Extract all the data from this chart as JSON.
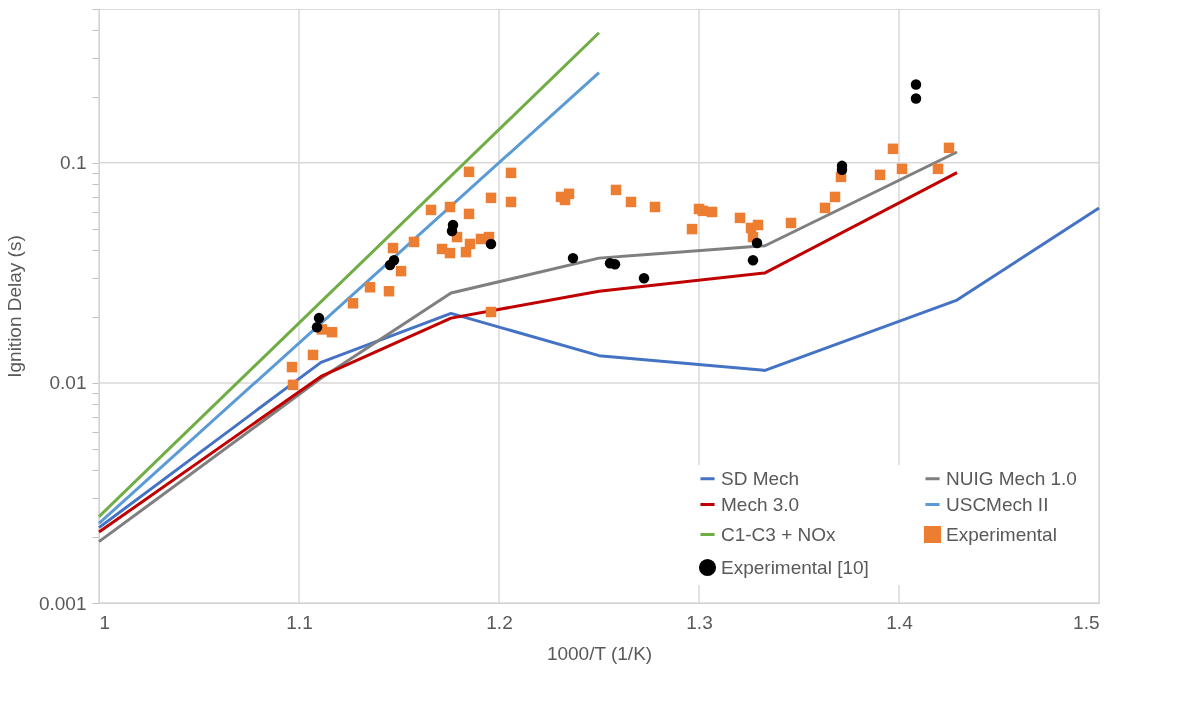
{
  "chart_data": {
    "type": "line",
    "xlabel": "1000/T (1/K)",
    "ylabel": "Ignition Delay (s)",
    "log": "y",
    "grid": true,
    "legend": "bottom right",
    "xlim": [
      1,
      1.5
    ],
    "xticks": [
      1,
      1.1,
      1.2,
      1.3,
      1.4,
      1.5
    ],
    "ylim": [
      0.001,
      0.5
    ],
    "yticks": [
      0.001,
      {
        "value": 0.002,
        "label": null
      },
      {
        "value": 0.003,
        "label": null
      },
      {
        "value": 0.004,
        "label": null
      },
      {
        "value": 0.005,
        "label": null
      },
      {
        "value": 0.006,
        "label": null
      },
      {
        "value": 0.007,
        "label": null
      },
      {
        "value": 0.008,
        "label": null
      },
      {
        "value": 0.009,
        "label": null
      },
      0.01,
      {
        "value": 0.02,
        "label": null
      },
      {
        "value": 0.03,
        "label": null
      },
      {
        "value": 0.04,
        "label": null
      },
      {
        "value": 0.05,
        "label": null
      },
      {
        "value": 0.06,
        "label": null
      },
      {
        "value": 0.07,
        "label": null
      },
      {
        "value": 0.08,
        "label": null
      },
      {
        "value": 0.09,
        "label": null
      },
      0.1,
      {
        "value": 0.2,
        "label": null
      },
      {
        "value": 0.3,
        "label": null
      },
      {
        "value": 0.4,
        "label": null
      },
      {
        "value": 0.5,
        "label": null
      }
    ],
    "series": [
      {
        "name": "SD Mech",
        "color": "#4472c4",
        "x": [
          1,
          1.111,
          1.176,
          1.25,
          1.333,
          1.429,
          1.5
        ],
        "values": [
          0.0022,
          0.0124,
          0.0207,
          0.0133,
          0.0114,
          0.0238,
          0.0624
        ]
      },
      {
        "name": "NUIG Mech 1.0",
        "color": "#7f7f7f",
        "x": [
          1,
          1.111,
          1.176,
          1.25,
          1.333,
          1.429
        ],
        "values": [
          0.0019,
          0.0105,
          0.0256,
          0.0369,
          0.042,
          0.112
        ]
      },
      {
        "name": "Mech 3.0",
        "color": "#c00000",
        "x": [
          1,
          1.111,
          1.176,
          1.25,
          1.333,
          1.429
        ],
        "values": [
          0.0021,
          0.0107,
          0.0197,
          0.0261,
          0.0316,
          0.0903
        ]
      },
      {
        "name": "USCMech II",
        "color": "#5b9bd5",
        "x": [
          1,
          1.25
        ],
        "values": [
          0.0023,
          0.257
        ]
      },
      {
        "name": "C1-C3 + NOx",
        "color": "#70ad47",
        "x": [
          1,
          1.25
        ],
        "values": [
          0.00247,
          0.39
        ]
      },
      {
        "name": "Experimental",
        "type": "scatter",
        "marker": "square",
        "color": "#ed7d31",
        "x": [
          1.0965,
          1.097,
          1.107,
          1.1115,
          1.1165,
          1.127,
          1.1355,
          1.145,
          1.147,
          1.151,
          1.1575,
          1.166,
          1.1715,
          1.1755,
          1.1755,
          1.179,
          1.1835,
          1.1855,
          1.185,
          1.185,
          1.191,
          1.195,
          1.196,
          1.196,
          1.206,
          1.206,
          1.231,
          1.233,
          1.235,
          1.2585,
          1.266,
          1.278,
          1.2965,
          1.3,
          1.302,
          1.3065,
          1.3205,
          1.326,
          1.3295,
          1.327,
          1.346,
          1.363,
          1.368,
          1.371,
          1.3905,
          1.397,
          1.4015,
          1.4195,
          1.425
        ],
        "values": [
          0.0118,
          0.0098,
          0.0134,
          0.0175,
          0.017,
          0.023,
          0.0272,
          0.0261,
          0.041,
          0.0322,
          0.0437,
          0.0611,
          0.0406,
          0.063,
          0.0389,
          0.046,
          0.0393,
          0.0428,
          0.0586,
          0.091,
          0.0451,
          0.046,
          0.0693,
          0.021,
          0.09,
          0.0664,
          0.07,
          0.0678,
          0.0723,
          0.0753,
          0.0664,
          0.063,
          0.05,
          0.0617,
          0.0605,
          0.0598,
          0.0562,
          0.0506,
          0.0522,
          0.046,
          0.0533,
          0.0624,
          0.07,
          0.0863,
          0.0882,
          0.1158,
          0.0939,
          0.0939,
          0.117
        ]
      },
      {
        "name": "Experimental [10]",
        "type": "scatter",
        "marker": "circle",
        "color": "#000000",
        "x": [
          1.11,
          1.109,
          1.1455,
          1.1475,
          1.1765,
          1.177,
          1.196,
          1.237,
          1.2555,
          1.258,
          1.2725,
          1.327,
          1.329,
          1.3715,
          1.3715,
          1.4085,
          1.4085
        ],
        "values": [
          0.0197,
          0.0179,
          0.0343,
          0.0361,
          0.049,
          0.0522,
          0.0428,
          0.0369,
          0.035,
          0.0346,
          0.0299,
          0.0361,
          0.0432,
          0.0929,
          0.0969,
          0.196,
          0.227
        ]
      }
    ]
  }
}
